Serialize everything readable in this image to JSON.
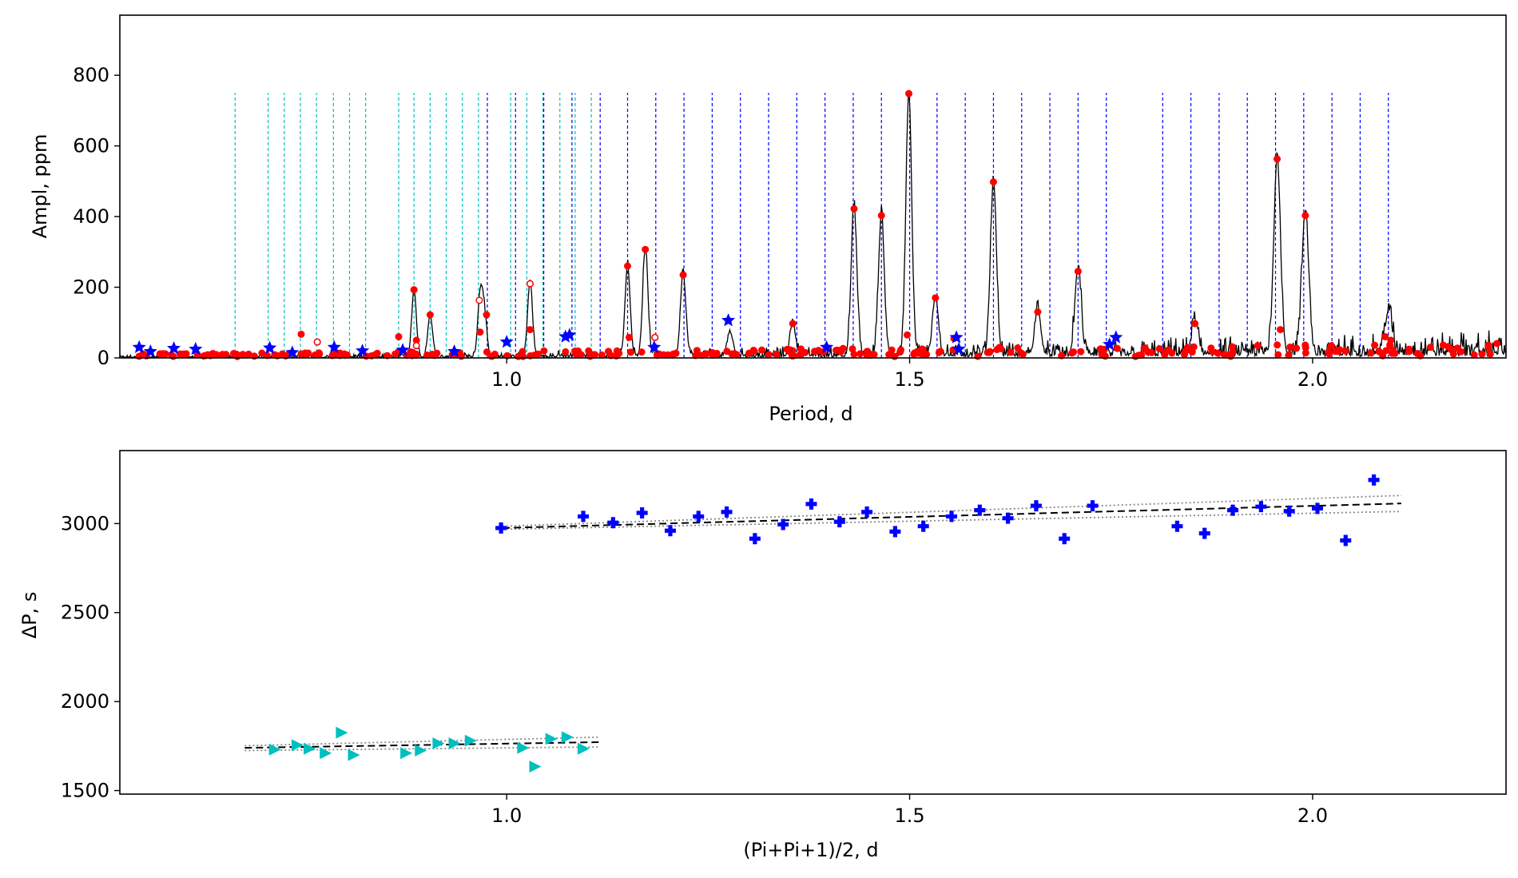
{
  "chart_data": [
    {
      "type": "line",
      "panel": "top",
      "xlabel": "Period, d",
      "ylabel": "Ampl, ppm",
      "xlim": [
        0.52,
        2.24
      ],
      "ylim": [
        0,
        970
      ],
      "xticks": [
        1.0,
        1.5,
        2.0
      ],
      "xtick_labels": [
        "1.0",
        "1.5",
        "2.0"
      ],
      "yticks": [
        0,
        200,
        400,
        600,
        800
      ],
      "ytick_labels": [
        "0",
        "200",
        "400",
        "600",
        "800"
      ],
      "colors": {
        "spectrum": "#000000",
        "peaks": "#ff0000",
        "stars": "#0000ff",
        "grid_cyan": "#00bfbf",
        "grid_blue": "#0000ff"
      },
      "cyan_lines": [
        0.663,
        0.704,
        0.724,
        0.744,
        0.764,
        0.785,
        0.805,
        0.825,
        0.866,
        0.885,
        0.905,
        0.925,
        0.945,
        0.965,
        1.005,
        1.025,
        1.045,
        1.066,
        1.085,
        1.105
      ],
      "blue_lines": [
        0.976,
        1.011,
        1.046,
        1.081,
        1.116,
        1.15,
        1.185,
        1.22,
        1.255,
        1.29,
        1.325,
        1.36,
        1.395,
        1.43,
        1.465,
        1.5,
        1.534,
        1.569,
        1.604,
        1.639,
        1.674,
        1.709,
        1.744,
        1.814,
        1.849,
        1.884,
        1.919,
        1.954,
        1.989,
        2.024,
        2.059,
        2.094
      ],
      "line_top": 750,
      "spectrum_peaks": [
        [
          0.885,
          190
        ],
        [
          0.905,
          120
        ],
        [
          0.967,
          165
        ],
        [
          0.972,
          120
        ],
        [
          1.029,
          210
        ],
        [
          1.15,
          260
        ],
        [
          1.172,
          305
        ],
        [
          1.219,
          235
        ],
        [
          1.277,
          70
        ],
        [
          1.355,
          95
        ],
        [
          1.431,
          420
        ],
        [
          1.465,
          400
        ],
        [
          1.499,
          745
        ],
        [
          1.532,
          170
        ],
        [
          1.604,
          495
        ],
        [
          1.659,
          130
        ],
        [
          1.709,
          245
        ],
        [
          1.854,
          95
        ],
        [
          1.956,
          560
        ],
        [
          1.991,
          400
        ],
        [
          2.094,
          120
        ]
      ],
      "red_points": [
        [
          0.885,
          193
        ],
        [
          0.905,
          122
        ],
        [
          0.967,
          73
        ],
        [
          0.975,
          122
        ],
        [
          1.029,
          80
        ],
        [
          1.15,
          260
        ],
        [
          1.172,
          307
        ],
        [
          1.219,
          235
        ],
        [
          1.355,
          97
        ],
        [
          1.431,
          422
        ],
        [
          1.465,
          403
        ],
        [
          1.499,
          748
        ],
        [
          1.532,
          170
        ],
        [
          1.604,
          498
        ],
        [
          1.659,
          130
        ],
        [
          1.709,
          245
        ],
        [
          1.854,
          97
        ],
        [
          1.956,
          563
        ],
        [
          1.991,
          403
        ],
        [
          0.745,
          67
        ],
        [
          0.866,
          60
        ],
        [
          0.888,
          50
        ],
        [
          1.152,
          58
        ],
        [
          1.497,
          65
        ],
        [
          1.555,
          55
        ],
        [
          2.09,
          60
        ],
        [
          2.097,
          50
        ],
        [
          1.96,
          80
        ]
      ],
      "open_points": [
        [
          0.966,
          163
        ],
        [
          1.029,
          210
        ],
        [
          0.765,
          45
        ],
        [
          0.888,
          35
        ],
        [
          1.184,
          58
        ]
      ],
      "star_points": [
        [
          0.544,
          30
        ],
        [
          0.558,
          18
        ],
        [
          0.587,
          27
        ],
        [
          0.614,
          25
        ],
        [
          0.706,
          28
        ],
        [
          0.734,
          15
        ],
        [
          0.786,
          30
        ],
        [
          0.821,
          20
        ],
        [
          0.871,
          22
        ],
        [
          0.935,
          18
        ],
        [
          1.0,
          45
        ],
        [
          1.073,
          60
        ],
        [
          1.078,
          65
        ],
        [
          1.183,
          30
        ],
        [
          1.275,
          106
        ],
        [
          1.397,
          30
        ],
        [
          1.558,
          58
        ],
        [
          1.561,
          25
        ],
        [
          1.756,
          58
        ],
        [
          1.748,
          38
        ]
      ]
    },
    {
      "type": "scatter",
      "panel": "bottom",
      "xlabel": "(Pi+Pi+1)/2, d",
      "ylabel": "ΔP, s",
      "xlim": [
        0.52,
        2.24
      ],
      "ylim": [
        1480,
        3410
      ],
      "xticks": [
        1.0,
        1.5,
        2.0
      ],
      "xtick_labels": [
        "1.0",
        "1.5",
        "2.0"
      ],
      "yticks": [
        1500,
        2000,
        2500,
        3000
      ],
      "ytick_labels": [
        "1500",
        "2000",
        "2500",
        "3000"
      ],
      "series": [
        {
          "name": "sequence 1 (blue crosses)",
          "marker": "plus",
          "color": "#0000ff",
          "x": [
            0.993,
            1.095,
            1.132,
            1.168,
            1.203,
            1.238,
            1.273,
            1.308,
            1.343,
            1.378,
            1.413,
            1.447,
            1.482,
            1.517,
            1.552,
            1.587,
            1.622,
            1.657,
            1.692,
            1.727,
            1.832,
            1.866,
            1.901,
            1.936,
            1.971,
            2.006,
            2.041,
            2.076
          ],
          "y": [
            2975,
            3040,
            3005,
            3060,
            2960,
            3040,
            3065,
            2915,
            2995,
            3110,
            3010,
            3065,
            2955,
            2985,
            3040,
            3075,
            3030,
            3100,
            2915,
            3100,
            2985,
            2945,
            3075,
            3095,
            3070,
            3085,
            2905,
            3245
          ]
        },
        {
          "name": "sequence 2 (cyan triangles)",
          "marker": "triangle-right",
          "color": "#00bfbf",
          "x": [
            0.712,
            0.74,
            0.755,
            0.775,
            0.795,
            0.81,
            0.875,
            0.893,
            0.915,
            0.935,
            0.955,
            1.02,
            1.035,
            1.055,
            1.075,
            1.095
          ],
          "y": [
            1730,
            1755,
            1735,
            1710,
            1825,
            1700,
            1710,
            1725,
            1765,
            1765,
            1780,
            1740,
            1635,
            1790,
            1800,
            1735
          ]
        }
      ],
      "fits": [
        {
          "x": [
            0.995,
            2.11
          ],
          "y": [
            2975,
            3113
          ],
          "lower": [
            2968,
            3068
          ],
          "upper": [
            2985,
            3158
          ]
        },
        {
          "x": [
            0.675,
            1.115
          ],
          "y": [
            1740,
            1772
          ],
          "lower": [
            1725,
            1745
          ],
          "upper": [
            1752,
            1800
          ]
        }
      ]
    }
  ]
}
